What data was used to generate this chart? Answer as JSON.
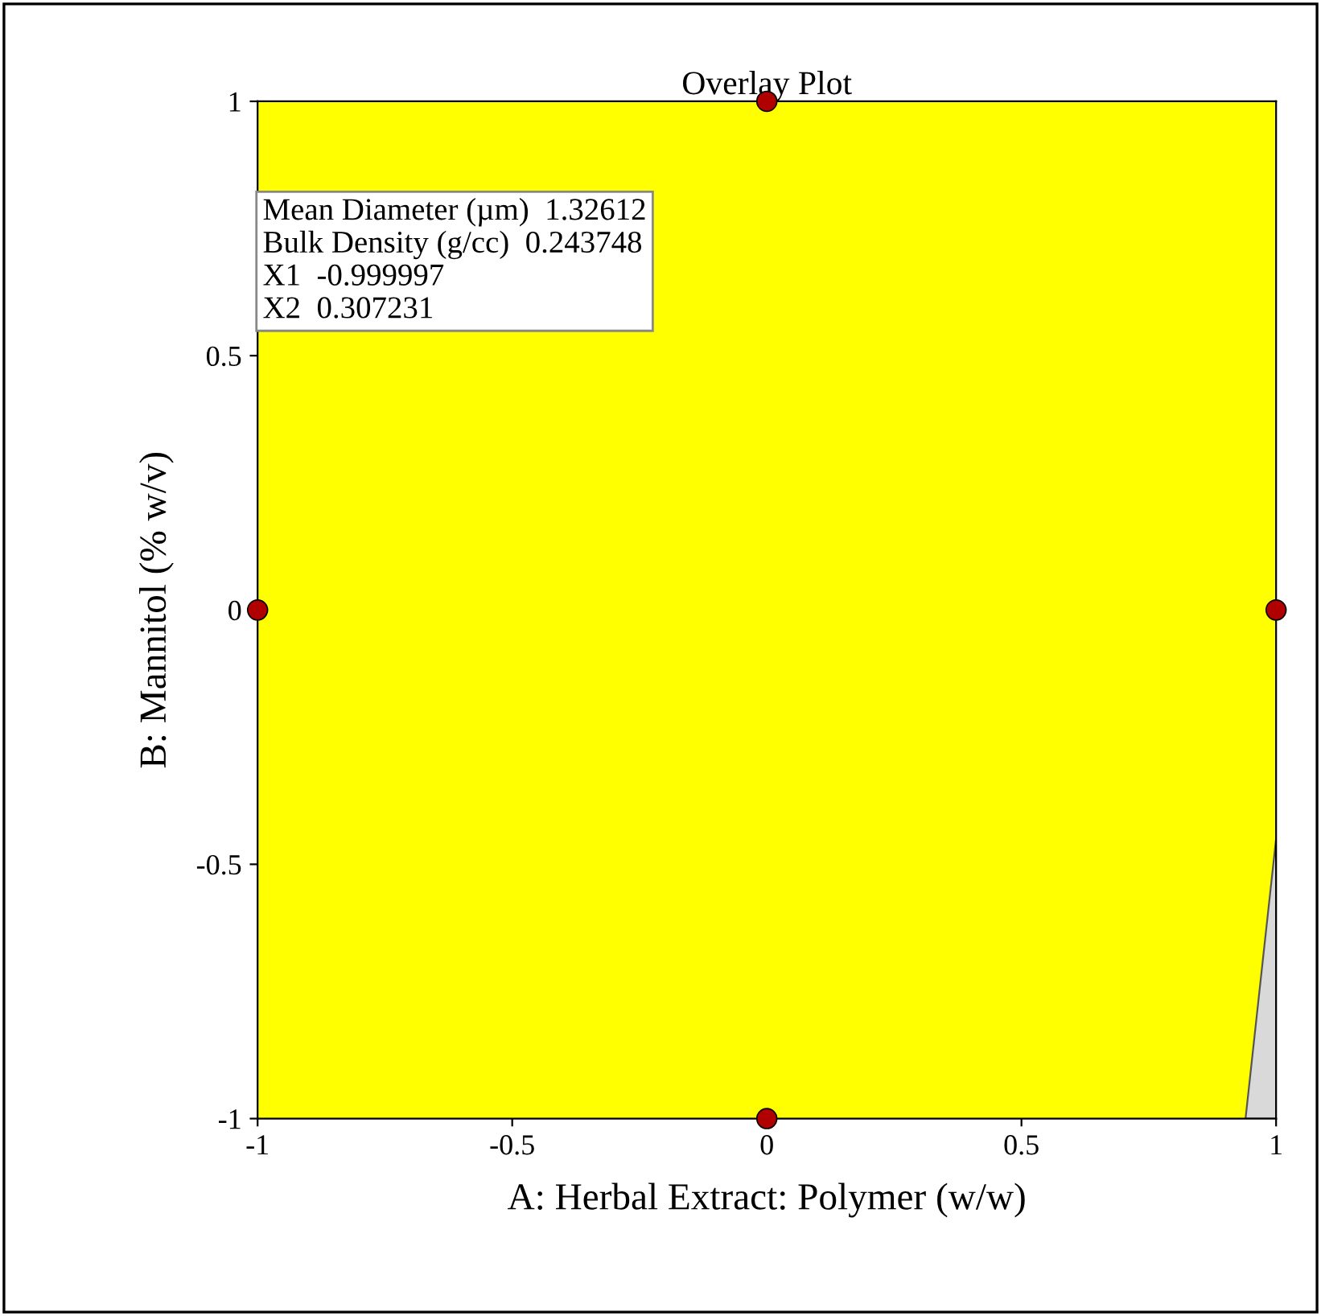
{
  "chart_data": {
    "type": "scatter",
    "title": "Overlay Plot",
    "xlabel": "A: Herbal Extract: Polymer (w/w)",
    "ylabel": "B: Mannitol (% w/v)",
    "xlim": [
      -1,
      1
    ],
    "ylim": [
      -1,
      1
    ],
    "xticks": [
      -1,
      -0.5,
      0,
      0.5,
      1
    ],
    "yticks": [
      -1,
      -0.5,
      0,
      0.5,
      1
    ],
    "grid": false,
    "legend": false,
    "series": [
      {
        "type": "area",
        "color": "#d9d9d9",
        "x": [
          0.94,
          1
        ],
        "values": [
          -1,
          -0.45
        ]
      },
      {
        "color": "#b00000",
        "marker": "circle",
        "x": [
          0,
          -1,
          1,
          0
        ],
        "values": [
          1,
          0,
          0,
          -1
        ]
      }
    ],
    "annotations": [
      "Mean Diameter (µm)  1.32612\nBulk Density (g/cc)  0.243748\nX1  -0.999997\nX2  0.307231"
    ]
  }
}
